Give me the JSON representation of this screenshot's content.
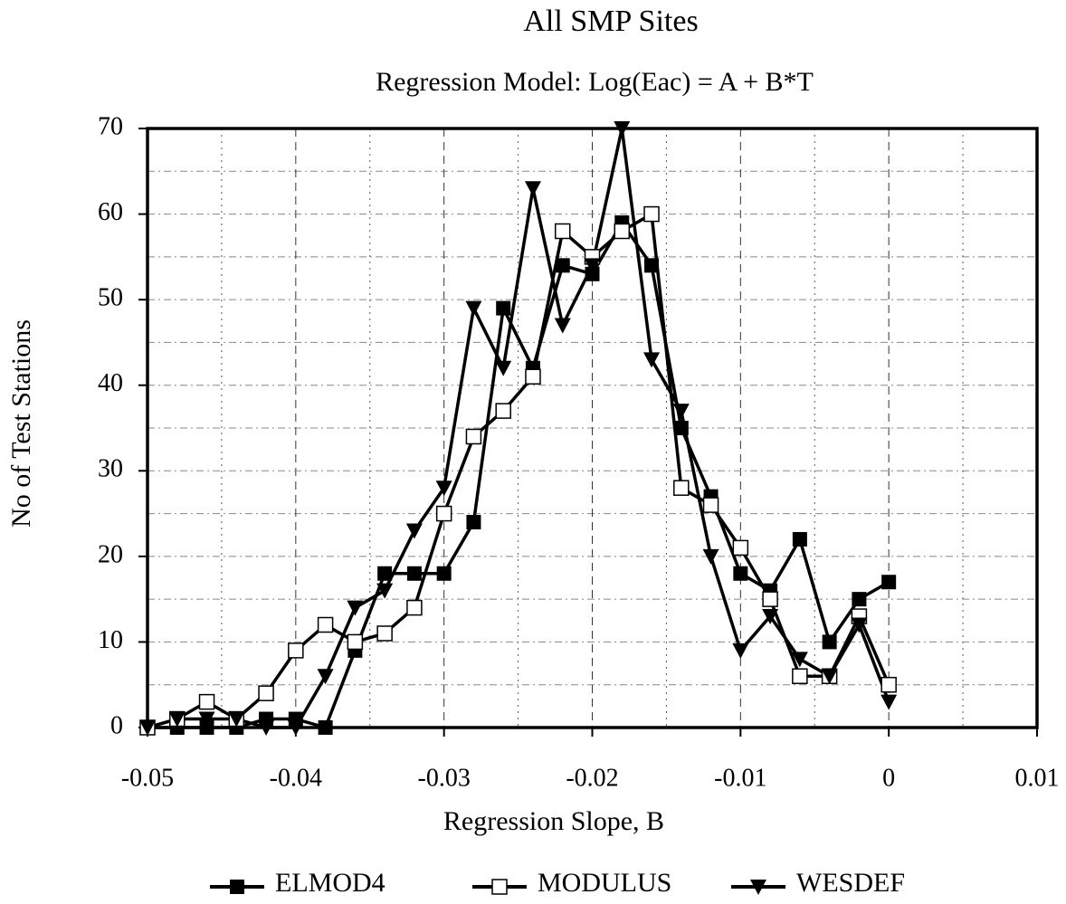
{
  "chart_data": {
    "type": "line",
    "title": "All SMP Sites",
    "subtitle": "Regression Model:  Log(Eac) = A + B*T",
    "x_label": "Regression Slope, B",
    "y_label": "No of Test Stations",
    "x": [
      -0.05,
      -0.048,
      -0.046,
      -0.044,
      -0.042,
      -0.04,
      -0.038,
      -0.036,
      -0.034,
      -0.032,
      -0.03,
      -0.028,
      -0.026,
      -0.024,
      -0.022,
      -0.02,
      -0.018,
      -0.016,
      -0.014,
      -0.012,
      -0.01,
      -0.008,
      -0.006,
      -0.004,
      -0.002,
      0
    ],
    "series": [
      {
        "name": "ELMOD4",
        "color": "#000000",
        "marker": "filled-square",
        "values": [
          0,
          0,
          0,
          0,
          1,
          1,
          0,
          9,
          18,
          18,
          18,
          24,
          49,
          42,
          54,
          53,
          59,
          54,
          35,
          27,
          18,
          16,
          22,
          10,
          15,
          17
        ]
      },
      {
        "name": "MODULUS",
        "color": "#000000",
        "marker": "open-square",
        "values": [
          0,
          1,
          3,
          1,
          4,
          9,
          12,
          10,
          11,
          14,
          25,
          34,
          37,
          41,
          58,
          55,
          58,
          60,
          28,
          26,
          21,
          15,
          6,
          6,
          13,
          5
        ]
      },
      {
        "name": "WESDEF",
        "color": "#000000",
        "marker": "triangle-down",
        "values": [
          0,
          1,
          1,
          1,
          0,
          0,
          6,
          14,
          16,
          23,
          28,
          49,
          42,
          63,
          47,
          54,
          70,
          43,
          37,
          20,
          9,
          13,
          8,
          6,
          12,
          3
        ]
      }
    ],
    "xlim": [
      -0.05,
      0.01
    ],
    "xticks": [
      -0.05,
      -0.04,
      -0.03,
      -0.02,
      -0.01,
      0,
      0.01
    ],
    "ylim": [
      0,
      70
    ],
    "yticks": [
      0,
      10,
      20,
      30,
      40,
      50,
      60,
      70
    ],
    "grid": true,
    "legend": "bottom"
  }
}
